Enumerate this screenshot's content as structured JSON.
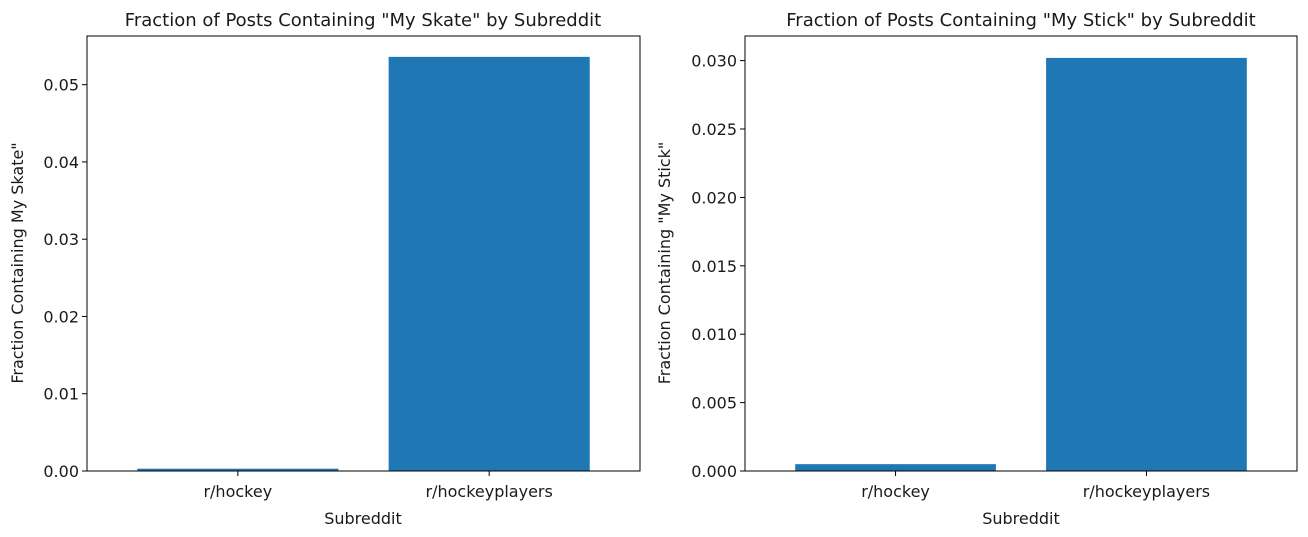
{
  "chart_data": [
    {
      "type": "bar",
      "title": "Fraction of Posts Containing \"My Skate\" by Subreddit",
      "xlabel": "Subreddit",
      "ylabel": "Fraction Containing My Skate\"",
      "categories": [
        "r/hockey",
        "r/hockeyplayers"
      ],
      "values": [
        0.0003,
        0.0536
      ],
      "ylim": [
        0,
        0.0563
      ],
      "yticks": [
        0.0,
        0.01,
        0.02,
        0.03,
        0.04,
        0.05
      ],
      "ytick_labels": [
        "0.00",
        "0.01",
        "0.02",
        "0.03",
        "0.04",
        "0.05"
      ],
      "color": "#1f77b4",
      "grid": false
    },
    {
      "type": "bar",
      "title": "Fraction of Posts Containing \"My Stick\" by Subreddit",
      "xlabel": "Subreddit",
      "ylabel": "Fraction Containing \"My Stick\"",
      "categories": [
        "r/hockey",
        "r/hockeyplayers"
      ],
      "values": [
        0.0005,
        0.0302
      ],
      "ylim": [
        0,
        0.0318
      ],
      "yticks": [
        0.0,
        0.005,
        0.01,
        0.015,
        0.02,
        0.025,
        0.03
      ],
      "ytick_labels": [
        "0.000",
        "0.005",
        "0.010",
        "0.015",
        "0.020",
        "0.025",
        "0.030"
      ],
      "color": "#1f77b4",
      "grid": false
    }
  ]
}
